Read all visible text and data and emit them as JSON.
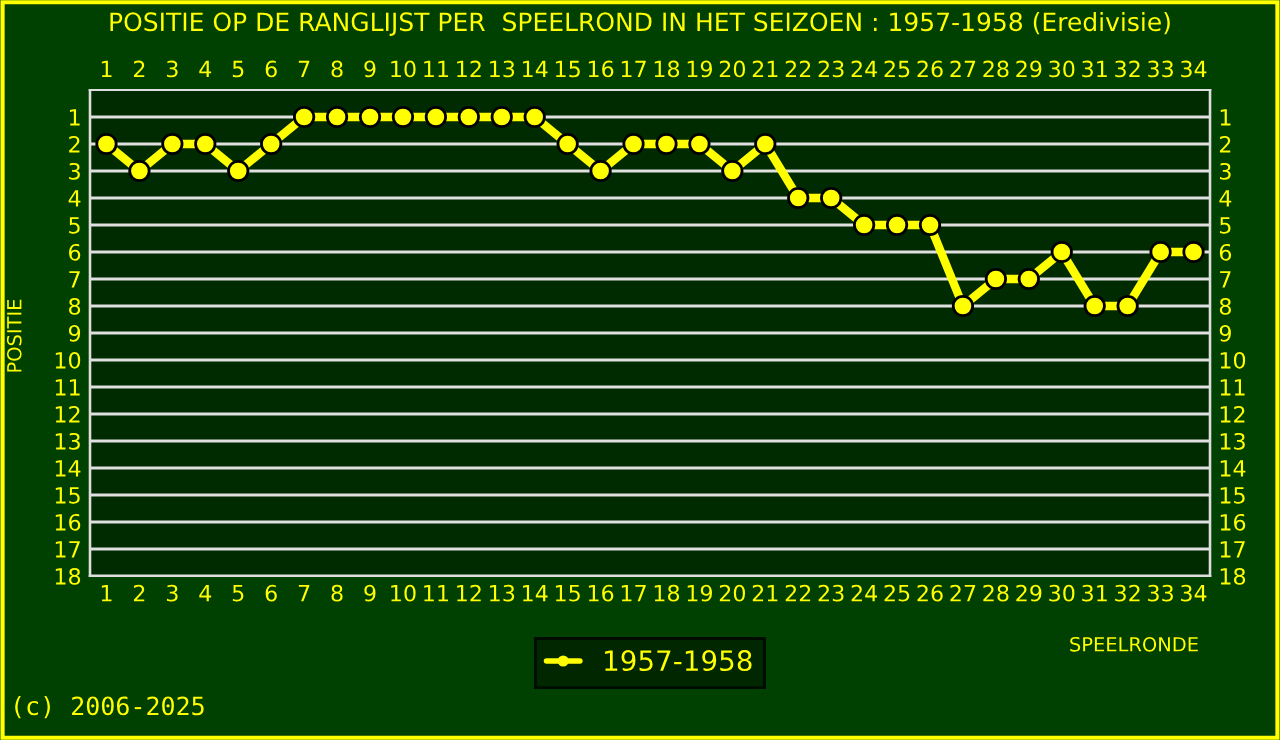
{
  "chart_data": {
    "type": "line",
    "title": "POSITIE OP DE RANGLIJST PER  SPEELROND IN HET SEIZOEN : 1957-1958 (Eredivisie)",
    "xlabel": "SPEELRONDE",
    "ylabel": "POSITIE",
    "x": [
      1,
      2,
      3,
      4,
      5,
      6,
      7,
      8,
      9,
      10,
      11,
      12,
      13,
      14,
      15,
      16,
      17,
      18,
      19,
      20,
      21,
      22,
      23,
      24,
      25,
      26,
      27,
      28,
      29,
      30,
      31,
      32,
      33,
      34
    ],
    "series": [
      {
        "name": "1957-1958",
        "color": "#ffff00",
        "values": [
          2,
          3,
          2,
          2,
          3,
          2,
          1,
          1,
          1,
          1,
          1,
          1,
          1,
          1,
          2,
          3,
          2,
          2,
          2,
          3,
          2,
          4,
          4,
          5,
          5,
          5,
          8,
          7,
          7,
          6,
          8,
          8,
          6,
          6
        ]
      }
    ],
    "xlim": [
      0.5,
      34.5
    ],
    "xticks": [
      1,
      2,
      3,
      4,
      5,
      6,
      7,
      8,
      9,
      10,
      11,
      12,
      13,
      14,
      15,
      16,
      17,
      18,
      19,
      20,
      21,
      22,
      23,
      24,
      25,
      26,
      27,
      28,
      29,
      30,
      31,
      32,
      33,
      34
    ],
    "x2lim": [
      0.5,
      34.5
    ],
    "x2ticks": [
      1,
      2,
      3,
      4,
      5,
      6,
      7,
      8,
      9,
      10,
      11,
      12,
      13,
      14,
      15,
      16,
      17,
      18,
      19,
      20,
      21,
      22,
      23,
      24,
      25,
      26,
      27,
      28,
      29,
      30,
      31,
      32,
      33,
      34
    ],
    "ylim": [
      18,
      0
    ],
    "yticks": [
      1,
      2,
      3,
      4,
      5,
      6,
      7,
      8,
      9,
      10,
      11,
      12,
      13,
      14,
      15,
      16,
      17,
      18
    ],
    "y2lim": [
      18,
      0
    ],
    "y2ticks": [
      1,
      2,
      3,
      4,
      5,
      6,
      7,
      8,
      9,
      10,
      11,
      12,
      13,
      14,
      15,
      16,
      17,
      18
    ],
    "grid": "y",
    "legend": "bottom",
    "marker": "circle",
    "line_style": "solid",
    "annotations": [
      "(c) 2006-2025"
    ]
  }
}
